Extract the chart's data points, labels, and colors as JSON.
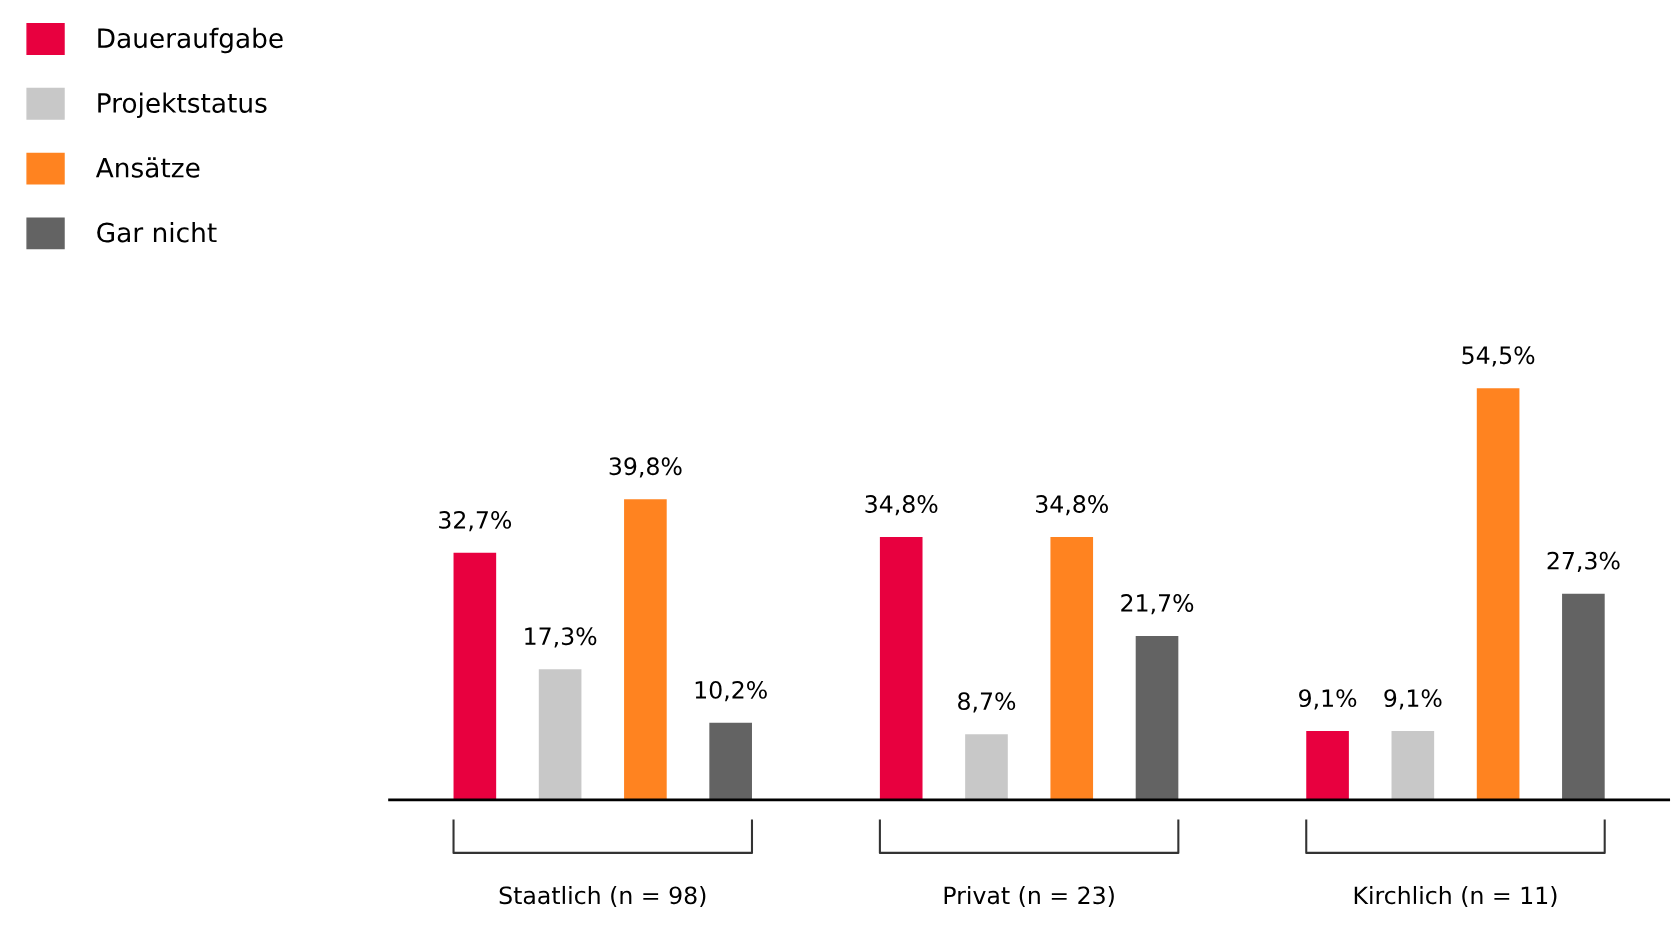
{
  "chart_data": {
    "type": "bar",
    "categories": [
      "Staatlich (n = 98)",
      "Privat (n = 23)",
      "Kirchlich (n = 11)"
    ],
    "series": [
      {
        "name": "Daueraufgabe",
        "color": "#e8003f",
        "values": [
          32.7,
          34.8,
          9.1
        ],
        "value_labels": [
          "32,7%",
          "34,8%",
          "9,1%"
        ]
      },
      {
        "name": "Projektstatus",
        "color": "#c8c8c8",
        "values": [
          17.3,
          8.7,
          9.1
        ],
        "value_labels": [
          "17,3%",
          "8,7%",
          "9,1%"
        ]
      },
      {
        "name": "Ansätze",
        "color": "#ff8320",
        "values": [
          39.8,
          34.8,
          54.5
        ],
        "value_labels": [
          "39,8%",
          "34,8%",
          "54,5%"
        ]
      },
      {
        "name": "Gar nicht",
        "color": "#636363",
        "values": [
          10.2,
          21.7,
          27.3
        ],
        "value_labels": [
          "10,2%",
          "21,7%",
          "27,3%"
        ]
      }
    ],
    "legend": "top left",
    "grid": false,
    "tick_labels": "x"
  }
}
